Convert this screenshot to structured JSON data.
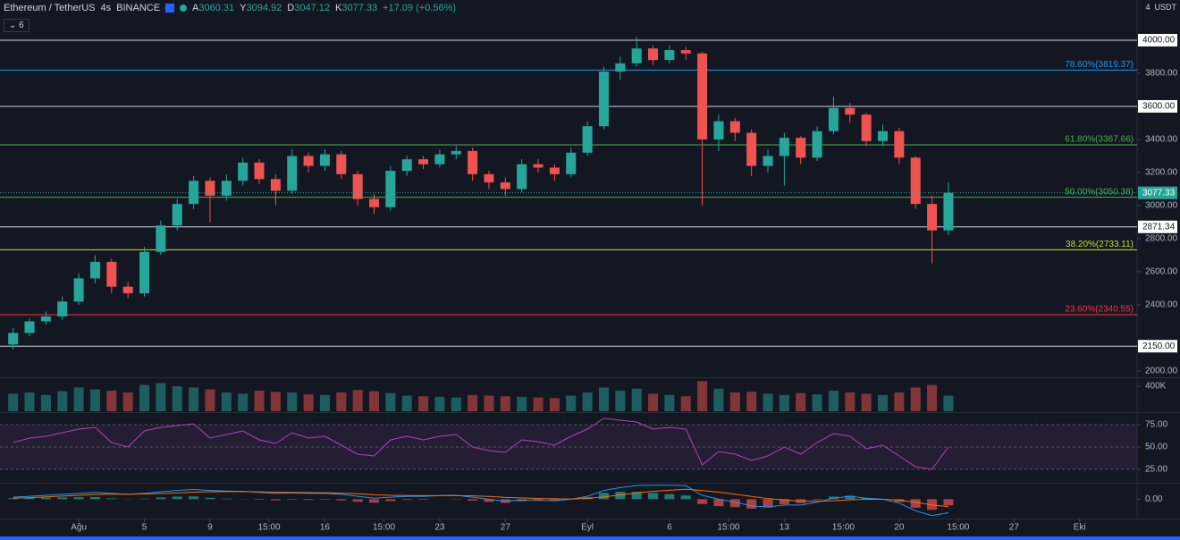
{
  "header": {
    "symbol": "Ethereum / TetherUS",
    "interval": "4s",
    "exchange": "BINANCE",
    "ohlc": [
      {
        "key": "A",
        "value": 3060.31
      },
      {
        "key": "Y",
        "value": 3094.92
      },
      {
        "key": "D",
        "value": 3047.12
      },
      {
        "key": "K",
        "value": 3077.33
      }
    ],
    "change": "+17.09 (+0.56%)",
    "indicators": "6",
    "currency": "USDT",
    "currency_badge": "4"
  },
  "chart_data": [
    {
      "type": "candlestick",
      "up_color": "#26a69a",
      "down_color": "#ef5350",
      "open": [
        2160,
        2230,
        2300,
        2330,
        2420,
        2560,
        2660,
        2510,
        2470,
        2720,
        2880,
        3010,
        3150,
        3060,
        3150,
        3260,
        3160,
        3090,
        3300,
        3240,
        3310,
        3190,
        3040,
        2990,
        3210,
        3280,
        3250,
        3310,
        3330,
        3190,
        3140,
        3100,
        3250,
        3230,
        3190,
        3320,
        3480,
        3810,
        3860,
        3950,
        3880,
        3940,
        3920,
        3400,
        3510,
        3440,
        3240,
        3300,
        3410,
        3290,
        3450,
        3590,
        3550,
        3390,
        3450,
        3290,
        3010,
        2850
      ],
      "high": [
        2260,
        2320,
        2360,
        2450,
        2590,
        2700,
        2680,
        2540,
        2750,
        2910,
        3040,
        3180,
        3170,
        3190,
        3290,
        3280,
        3190,
        3340,
        3320,
        3340,
        3330,
        3210,
        3070,
        3240,
        3300,
        3300,
        3340,
        3360,
        3350,
        3210,
        3170,
        3280,
        3280,
        3250,
        3350,
        3510,
        3840,
        3900,
        4020,
        3970,
        3970,
        3960,
        3930,
        3550,
        3530,
        3460,
        3340,
        3440,
        3420,
        3480,
        3660,
        3620,
        3560,
        3490,
        3470,
        3300,
        3060,
        3140
      ],
      "low": [
        2130,
        2210,
        2280,
        2310,
        2400,
        2530,
        2470,
        2440,
        2450,
        2700,
        2850,
        2980,
        2900,
        3030,
        3120,
        3130,
        3000,
        3070,
        3200,
        3210,
        3160,
        3000,
        2950,
        2970,
        3180,
        3220,
        3230,
        3280,
        3150,
        3100,
        3060,
        3080,
        3200,
        3150,
        3170,
        3300,
        3460,
        3760,
        3840,
        3850,
        3860,
        3880,
        3000,
        3330,
        3390,
        3180,
        3200,
        3120,
        3250,
        3270,
        3430,
        3500,
        3360,
        3360,
        3250,
        2980,
        2650,
        2820
      ],
      "close": [
        2230,
        2300,
        2330,
        2420,
        2560,
        2660,
        2510,
        2470,
        2720,
        2880,
        3010,
        3150,
        3060,
        3150,
        3260,
        3160,
        3090,
        3300,
        3240,
        3310,
        3190,
        3040,
        2990,
        3210,
        3280,
        3250,
        3310,
        3330,
        3190,
        3140,
        3100,
        3250,
        3230,
        3190,
        3320,
        3480,
        3810,
        3860,
        3950,
        3880,
        3940,
        3920,
        3400,
        3510,
        3440,
        3240,
        3300,
        3410,
        3290,
        3450,
        3590,
        3550,
        3390,
        3450,
        3290,
        3010,
        2850,
        3077.33
      ],
      "xlim": [
        -0.8,
        68.5
      ],
      "xticks": [
        {
          "value": 4,
          "label": "Ağu"
        },
        {
          "value": 8,
          "label": "5"
        },
        {
          "value": 12,
          "label": "9"
        },
        {
          "value": 15.6,
          "label": "15:00"
        },
        {
          "value": 19,
          "label": "16"
        },
        {
          "value": 22.6,
          "label": "15:00"
        },
        {
          "value": 26,
          "label": "23"
        },
        {
          "value": 30,
          "label": "27"
        },
        {
          "value": 35,
          "label": "Eyl"
        },
        {
          "value": 40,
          "label": "6"
        },
        {
          "value": 43.6,
          "label": "15:00"
        },
        {
          "value": 47,
          "label": "13"
        },
        {
          "value": 50.6,
          "label": "15:00"
        },
        {
          "value": 54,
          "label": "20"
        },
        {
          "value": 57.6,
          "label": "15:00"
        },
        {
          "value": 61,
          "label": "27"
        },
        {
          "value": 65,
          "label": "Eki"
        }
      ],
      "ylim": [
        1962,
        4243
      ],
      "yticks": [
        {
          "value": 2000,
          "label": "2000.00"
        },
        {
          "value": 2400,
          "label": "2400.00"
        },
        {
          "value": 2600,
          "label": "2600.00"
        },
        {
          "value": 2800,
          "label": "2800.00"
        },
        {
          "value": 3000,
          "label": "3000.00"
        },
        {
          "value": 3200,
          "label": "3200.00"
        },
        {
          "value": 3400,
          "label": "3400.00"
        },
        {
          "value": 3800,
          "label": "3800.00"
        }
      ],
      "levels": [
        {
          "value": 4000,
          "label": "4000.00"
        },
        {
          "value": 3600,
          "label": "3600.00"
        },
        {
          "value": 2871.34,
          "label": "2871.34"
        },
        {
          "value": 2150,
          "label": "2150.00"
        }
      ],
      "fib": [
        {
          "value": 3819.37,
          "label": "78.60%(3819.37)",
          "color": "#2196f3"
        },
        {
          "value": 3367.66,
          "label": "61.80%(3367.66)",
          "color": "#4caf50"
        },
        {
          "value": 3050.38,
          "label": "50.00%(3050.38)",
          "color": "#4caf50"
        },
        {
          "value": 2733.11,
          "label": "38.20%(2733.11)",
          "color": "#cddc39"
        },
        {
          "value": 2340.55,
          "label": "23.60%(2340.55)",
          "color": "#f23645"
        }
      ],
      "last_price": {
        "value": 3077.33,
        "label": "3077.33"
      }
    },
    {
      "type": "volume",
      "values": [
        280000,
        300000,
        260000,
        320000,
        380000,
        350000,
        330000,
        300000,
        420000,
        450000,
        400000,
        380000,
        350000,
        300000,
        280000,
        330000,
        310000,
        300000,
        270000,
        260000,
        300000,
        340000,
        320000,
        290000,
        250000,
        240000,
        230000,
        220000,
        260000,
        250000,
        240000,
        230000,
        220000,
        210000,
        250000,
        300000,
        380000,
        330000,
        360000,
        280000,
        260000,
        240000,
        480000,
        360000,
        300000,
        310000,
        280000,
        260000,
        290000,
        270000,
        330000,
        300000,
        280000,
        260000,
        300000,
        380000,
        420000,
        250000
      ],
      "ylim": [
        0,
        500000
      ],
      "yticks": [
        {
          "value": 400000,
          "label": "400K"
        }
      ]
    },
    {
      "type": "line",
      "color": "#ab47bc",
      "values": [
        55,
        60,
        62,
        66,
        70,
        72,
        55,
        50,
        68,
        72,
        74,
        76,
        60,
        64,
        68,
        58,
        54,
        66,
        60,
        62,
        52,
        42,
        40,
        58,
        62,
        58,
        62,
        64,
        50,
        46,
        44,
        58,
        56,
        52,
        62,
        70,
        82,
        80,
        78,
        70,
        72,
        70,
        30,
        45,
        42,
        35,
        40,
        50,
        42,
        55,
        65,
        62,
        48,
        52,
        40,
        28,
        25,
        50
      ],
      "ylim": [
        10,
        88
      ],
      "yticks": [
        {
          "value": 75,
          "label": "75.00"
        },
        {
          "value": 50,
          "label": "50.00"
        },
        {
          "value": 25,
          "label": "25.00"
        }
      ]
    },
    {
      "type": "macd",
      "ylim": [
        -100,
        80
      ],
      "yticks": [
        {
          "value": 0,
          "label": "0.00"
        }
      ],
      "series": [
        {
          "color": "#2196f3",
          "values": [
            10,
            15,
            20,
            25,
            30,
            35,
            30,
            25,
            30,
            38,
            45,
            50,
            45,
            42,
            40,
            35,
            30,
            32,
            30,
            30,
            25,
            15,
            5,
            10,
            15,
            15,
            18,
            20,
            10,
            0,
            -10,
            -5,
            -5,
            -8,
            0,
            15,
            45,
            60,
            70,
            72,
            72,
            70,
            20,
            0,
            -15,
            -35,
            -40,
            -30,
            -30,
            -15,
            5,
            15,
            5,
            0,
            -20,
            -60,
            -85,
            -70
          ]
        },
        {
          "color": "#ff6d00",
          "values": [
            5,
            8,
            12,
            16,
            20,
            24,
            26,
            26,
            27,
            29,
            32,
            36,
            38,
            39,
            39,
            38,
            36,
            35,
            34,
            33,
            31,
            28,
            23,
            20,
            19,
            18,
            18,
            18,
            17,
            14,
            9,
            6,
            4,
            2,
            1,
            4,
            12,
            22,
            32,
            40,
            46,
            51,
            45,
            36,
            26,
            14,
            3,
            -4,
            -10,
            -11,
            -8,
            -3,
            -1,
            -1,
            -5,
            -16,
            -30,
            -38
          ]
        }
      ],
      "histogram": [
        5,
        7,
        8,
        9,
        10,
        11,
        4,
        -1,
        3,
        9,
        13,
        14,
        7,
        3,
        1,
        -3,
        -6,
        -3,
        -4,
        -3,
        -6,
        -13,
        -18,
        -10,
        -4,
        -3,
        0,
        2,
        -7,
        -14,
        -19,
        -11,
        -9,
        -10,
        -1,
        11,
        33,
        38,
        38,
        32,
        26,
        19,
        -25,
        -36,
        -41,
        -49,
        -43,
        -26,
        -20,
        -4,
        13,
        18,
        6,
        1,
        -15,
        -44,
        -55,
        -32
      ]
    }
  ]
}
